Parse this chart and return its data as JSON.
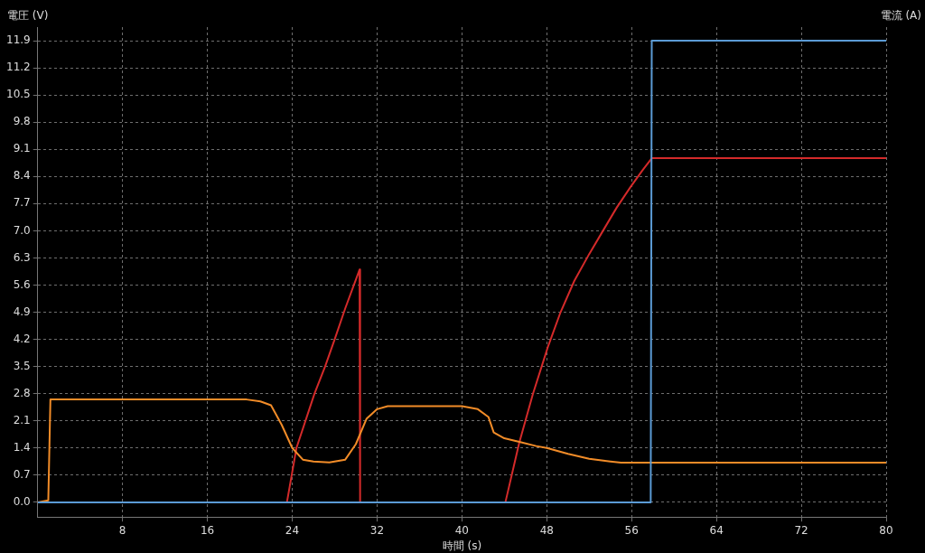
{
  "chart_data": {
    "type": "line",
    "xlabel": "時間 (s)",
    "ylabel": "電圧 (V)",
    "y2label": "電流 (A)",
    "xlim": [
      0,
      80
    ],
    "ylim": [
      -0.38,
      12.25
    ],
    "xticks": [
      8,
      16,
      24,
      32,
      40,
      48,
      56,
      64,
      72,
      80
    ],
    "yticks": [
      {
        "value": 0,
        "label": "0.0"
      },
      0.7,
      1.4,
      2.1,
      2.8,
      3.5,
      4.2,
      4.9,
      5.6,
      6.3,
      {
        "value": 7,
        "label": "7.0"
      },
      7.7,
      8.4,
      9.1,
      9.8,
      10.5,
      11.2,
      11.9
    ],
    "grid": true,
    "marker": "none",
    "line_style": "solid",
    "series": [
      {
        "color": "#5b9bd5",
        "x": [
          0,
          57.8,
          57.9,
          80
        ],
        "values": [
          0,
          0,
          11.9,
          11.9
        ]
      },
      {
        "color": "#f28c28",
        "x": [
          0,
          1.0,
          1.2,
          19.7,
          21,
          22,
          23,
          24,
          25,
          26,
          27.5,
          29,
          30,
          31,
          32,
          33,
          40,
          41.5,
          42.5,
          43,
          44,
          45.5,
          47,
          48,
          50,
          52,
          54,
          55,
          80
        ],
        "values": [
          0,
          0.05,
          2.65,
          2.65,
          2.6,
          2.5,
          2.0,
          1.4,
          1.1,
          1.05,
          1.03,
          1.1,
          1.5,
          2.15,
          2.4,
          2.48,
          2.48,
          2.4,
          2.2,
          1.8,
          1.65,
          1.55,
          1.45,
          1.4,
          1.25,
          1.12,
          1.05,
          1.02,
          1.02
        ]
      },
      {
        "color": "#d42a2a",
        "x": [
          0,
          23.5,
          24.4,
          26.1,
          27.1,
          28,
          29,
          30.35,
          30.4,
          44.1,
          45.4,
          46.7,
          48.1,
          49.3,
          50.6,
          52,
          53.3,
          54.6,
          55.9,
          57,
          57.9,
          80
        ],
        "values": [
          0,
          0,
          1.4,
          2.8,
          3.5,
          4.2,
          5.0,
          6.0,
          0,
          0,
          1.53,
          2.8,
          4.0,
          4.9,
          5.71,
          6.4,
          7.0,
          7.6,
          8.13,
          8.55,
          8.87,
          8.87
        ]
      }
    ]
  }
}
